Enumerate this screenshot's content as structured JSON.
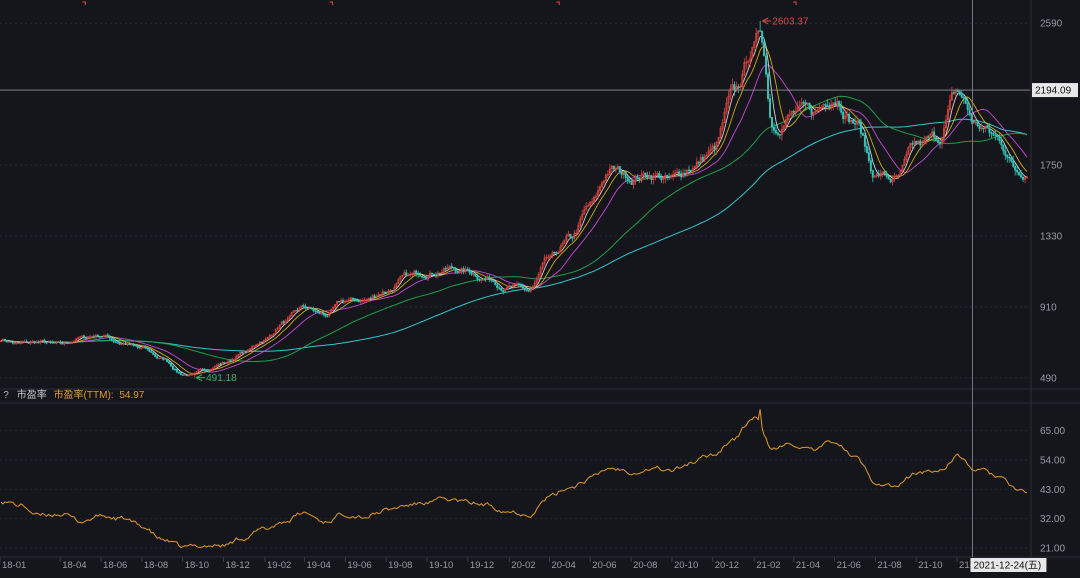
{
  "colors": {
    "background": "#14161b",
    "grid": "#262931",
    "axis_text": "#9a9ca3",
    "candle_up": "#d8423c",
    "candle_down": "#34c3b6",
    "ma5": "#f2f2f2",
    "ma10": "#f0c419",
    "ma20": "#d24be0",
    "ma60": "#1fa84a",
    "ma120": "#36d0d8",
    "pe_line": "#e39a2a",
    "high_label": "#e04848",
    "low_label": "#31b46a",
    "crosshair": "#8c8f96"
  },
  "sub_header": {
    "help": "?",
    "name": "市盈率",
    "indicator": "市盈率(TTM):",
    "value": "54.97"
  },
  "crosshair": {
    "price_label": "2194.09",
    "date_label": "2021-12-24(五)",
    "price": 2194.09,
    "date": "2021-12-24"
  },
  "chart_data": [
    {
      "type": "candlestick",
      "title": "",
      "ylim": [
        430,
        2680
      ],
      "y_ticks": [
        490,
        910,
        1330,
        1750,
        2590
      ],
      "y_tick_labels": [
        "490",
        "910",
        "1330",
        "1750",
        "2590"
      ],
      "x_ticks": [
        "18-01",
        "18-04",
        "18-06",
        "18-08",
        "18-10",
        "18-12",
        "19-02",
        "19-04",
        "19-06",
        "19-08",
        "19-10",
        "19-12",
        "20-02",
        "20-04",
        "20-06",
        "20-08",
        "20-10",
        "20-12",
        "21-02",
        "21-04",
        "21-06",
        "21-08",
        "21-10",
        "21-12"
      ],
      "grid": true,
      "annotations": [
        {
          "label": "2603.37",
          "date": "2021-02-10",
          "value": 2603.37,
          "kind": "high"
        },
        {
          "label": "491.18",
          "date": "2018-10-18",
          "value": 491.18,
          "kind": "low"
        }
      ],
      "series_close": [
        {
          "date": "2018-01",
          "value": 720
        },
        {
          "date": "2018-02",
          "value": 690
        },
        {
          "date": "2018-03",
          "value": 700
        },
        {
          "date": "2018-04",
          "value": 680
        },
        {
          "date": "2018-05",
          "value": 725
        },
        {
          "date": "2018-06",
          "value": 745
        },
        {
          "date": "2018-07",
          "value": 700
        },
        {
          "date": "2018-08",
          "value": 660
        },
        {
          "date": "2018-09",
          "value": 600
        },
        {
          "date": "2018-10",
          "value": 515
        },
        {
          "date": "2018-11",
          "value": 540
        },
        {
          "date": "2018-12",
          "value": 580
        },
        {
          "date": "2019-01",
          "value": 640
        },
        {
          "date": "2019-02",
          "value": 720
        },
        {
          "date": "2019-03",
          "value": 820
        },
        {
          "date": "2019-04",
          "value": 900
        },
        {
          "date": "2019-05",
          "value": 860
        },
        {
          "date": "2019-06",
          "value": 940
        },
        {
          "date": "2019-07",
          "value": 950
        },
        {
          "date": "2019-08",
          "value": 1010
        },
        {
          "date": "2019-09",
          "value": 1080
        },
        {
          "date": "2019-10",
          "value": 1120
        },
        {
          "date": "2019-11",
          "value": 1140
        },
        {
          "date": "2019-12",
          "value": 1120
        },
        {
          "date": "2020-01",
          "value": 1080
        },
        {
          "date": "2020-02",
          "value": 1030
        },
        {
          "date": "2020-03",
          "value": 1000
        },
        {
          "date": "2020-04",
          "value": 1180
        },
        {
          "date": "2020-05",
          "value": 1300
        },
        {
          "date": "2020-06",
          "value": 1500
        },
        {
          "date": "2020-07",
          "value": 1720
        },
        {
          "date": "2020-08",
          "value": 1680
        },
        {
          "date": "2020-09",
          "value": 1700
        },
        {
          "date": "2020-10",
          "value": 1660
        },
        {
          "date": "2020-11",
          "value": 1750
        },
        {
          "date": "2020-12",
          "value": 1830
        },
        {
          "date": "2021-01",
          "value": 2150
        },
        {
          "date": "2021-02",
          "value": 2450
        },
        {
          "date": "2021-03",
          "value": 2000
        },
        {
          "date": "2021-04",
          "value": 2060
        },
        {
          "date": "2021-05",
          "value": 2050
        },
        {
          "date": "2021-06",
          "value": 2180
        },
        {
          "date": "2021-07",
          "value": 2020
        },
        {
          "date": "2021-08",
          "value": 1700
        },
        {
          "date": "2021-09",
          "value": 1660
        },
        {
          "date": "2021-10",
          "value": 1850
        },
        {
          "date": "2021-11",
          "value": 1900
        },
        {
          "date": "2021-12",
          "value": 2170
        },
        {
          "date": "2022-01",
          "value": 1980
        },
        {
          "date": "2022-02",
          "value": 1900
        },
        {
          "date": "2022-03",
          "value": 1720
        }
      ]
    },
    {
      "type": "line",
      "title": "",
      "ylim": [
        18,
        75
      ],
      "y_ticks": [
        21,
        32,
        43,
        54,
        65
      ],
      "y_tick_labels": [
        "21.00",
        "32.00",
        "43.00",
        "54.00",
        "65.00"
      ],
      "series": [
        {
          "name": "市盈率(TTM)",
          "values": [
            39,
            37,
            33,
            34,
            31,
            33,
            32,
            29,
            24,
            21,
            22,
            22,
            25,
            28,
            31,
            34,
            31,
            34,
            33,
            35,
            37,
            38,
            39,
            38,
            37,
            35,
            34,
            40,
            44,
            47,
            51,
            50,
            51,
            50,
            53,
            56,
            62,
            70,
            58,
            60,
            57,
            61,
            55,
            46,
            44,
            49,
            50,
            55,
            50,
            48,
            42
          ]
        }
      ]
    }
  ]
}
